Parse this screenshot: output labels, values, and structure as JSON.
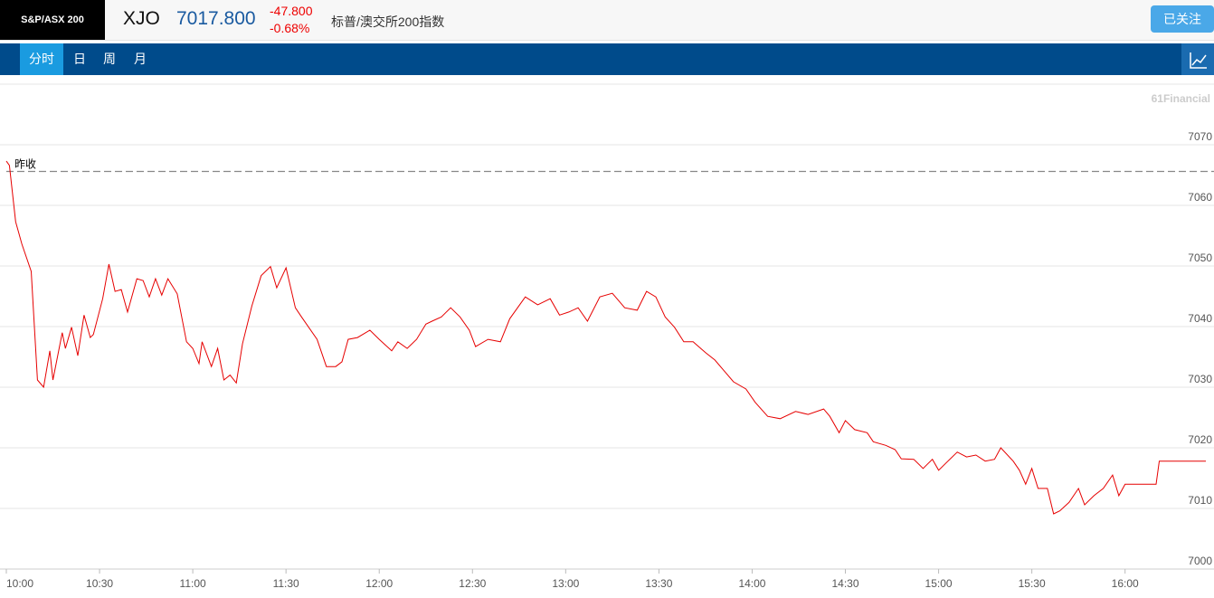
{
  "header": {
    "logo": "S&P/ASX 200",
    "symbol": "XJO",
    "price": "7017.800",
    "change": "-47.800",
    "change_pct": "-0.68%",
    "name": "标普/澳交所200指数",
    "follow_button": "已关注"
  },
  "tabs": [
    "分时",
    "日",
    "周",
    "月"
  ],
  "chart_data": {
    "type": "line",
    "watermark": "61Financial",
    "prev_close_label": "昨收",
    "prev_close": 7065.6,
    "x": [
      "10:00",
      "10:01",
      "10:03",
      "10:05",
      "10:08",
      "10:10",
      "10:12",
      "10:14",
      "10:15",
      "10:18",
      "10:19",
      "10:21",
      "10:23",
      "10:25",
      "10:27",
      "10:28",
      "10:31",
      "10:33",
      "10:35",
      "10:37",
      "10:39",
      "10:42",
      "10:44",
      "10:46",
      "10:48",
      "10:50",
      "10:52",
      "10:55",
      "10:58",
      "11:00",
      "11:02",
      "11:03",
      "11:06",
      "11:08",
      "11:10",
      "11:12",
      "11:14",
      "11:16",
      "11:19",
      "11:22",
      "11:25",
      "11:27",
      "11:30",
      "11:33",
      "11:35",
      "11:40",
      "11:43",
      "11:46",
      "11:48",
      "11:50",
      "11:53",
      "11:57",
      "12:00",
      "12:04",
      "12:06",
      "12:09",
      "12:12",
      "12:15",
      "12:17",
      "12:20",
      "12:23",
      "12:26",
      "12:29",
      "12:31",
      "12:35",
      "12:39",
      "12:42",
      "12:47",
      "12:51",
      "12:55",
      "12:58",
      "13:01",
      "13:04",
      "13:07",
      "13:11",
      "13:15",
      "13:19",
      "13:23",
      "13:26",
      "13:29",
      "13:32",
      "13:35",
      "13:38",
      "13:41",
      "13:45",
      "13:48",
      "13:51",
      "13:54",
      "13:58",
      "14:01",
      "14:05",
      "14:09",
      "14:14",
      "14:18",
      "14:23",
      "14:25",
      "14:28",
      "14:30",
      "14:33",
      "14:37",
      "14:39",
      "14:43",
      "14:46",
      "14:48",
      "14:52",
      "14:55",
      "14:58",
      "15:00",
      "15:03",
      "15:06",
      "15:09",
      "15:12",
      "15:15",
      "15:18",
      "15:20",
      "15:24",
      "15:26",
      "15:28",
      "15:30",
      "15:32",
      "15:35",
      "15:37",
      "15:39",
      "15:42",
      "15:45",
      "15:47",
      "15:50",
      "15:53",
      "15:56",
      "15:58",
      "16:00",
      "16:10",
      "16:11",
      "16:26"
    ],
    "series": [
      {
        "color": "#e60000",
        "values": [
          7067.3,
          7066.6,
          7057.3,
          7053.6,
          7049.1,
          7031.2,
          7030.0,
          7036.0,
          7031.2,
          7039.0,
          7036.4,
          7039.9,
          7035.2,
          7041.9,
          7038.2,
          7038.7,
          7044.6,
          7050.3,
          7045.8,
          7046.1,
          7042.4,
          7047.9,
          7047.6,
          7044.9,
          7047.9,
          7045.2,
          7047.9,
          7045.4,
          7037.5,
          7036.4,
          7033.9,
          7037.5,
          7033.4,
          7036.4,
          7031.2,
          7032.0,
          7030.7,
          7037.2,
          7043.4,
          7048.4,
          7049.9,
          7046.4,
          7049.7,
          7043.1,
          7041.6,
          7037.9,
          7033.4,
          7033.4,
          7034.2,
          7037.9,
          7038.2,
          7039.4,
          7037.9,
          7036.0,
          7037.5,
          7036.4,
          7037.9,
          7040.4,
          7040.9,
          7041.6,
          7043.1,
          7041.6,
          7039.4,
          7036.7,
          7037.9,
          7037.5,
          7041.3,
          7044.9,
          7043.6,
          7044.6,
          7041.9,
          7042.4,
          7043.1,
          7040.9,
          7044.9,
          7045.5,
          7043.1,
          7042.7,
          7045.8,
          7044.9,
          7041.6,
          7039.9,
          7037.5,
          7037.5,
          7035.7,
          7034.5,
          7032.7,
          7030.9,
          7029.7,
          7027.5,
          7025.2,
          7024.8,
          7026.0,
          7025.5,
          7026.4,
          7025.2,
          7022.5,
          7024.5,
          7023.0,
          7022.5,
          7021.0,
          7020.4,
          7019.7,
          7018.2,
          7018.1,
          7016.6,
          7018.1,
          7016.3,
          7017.8,
          7019.3,
          7018.5,
          7018.8,
          7017.8,
          7018.1,
          7020.0,
          7017.8,
          7016.3,
          7014.0,
          7016.6,
          7013.3,
          7013.3,
          7009.1,
          7009.6,
          7011.0,
          7013.3,
          7010.6,
          7012.1,
          7013.3,
          7015.5,
          7012.1,
          7014.0,
          7014.0,
          7017.8,
          7017.8
        ]
      }
    ],
    "xlim": [
      "10:00",
      "16:26"
    ],
    "xticks": [
      "10:00",
      "10:30",
      "11:00",
      "11:30",
      "12:00",
      "12:30",
      "13:00",
      "13:30",
      "14:00",
      "14:30",
      "15:00",
      "15:30",
      "16:00"
    ],
    "ylim": [
      7000,
      7080
    ],
    "yticks": [
      7000,
      7010,
      7020,
      7030,
      7040,
      7050,
      7060,
      7070
    ],
    "grid": true
  }
}
